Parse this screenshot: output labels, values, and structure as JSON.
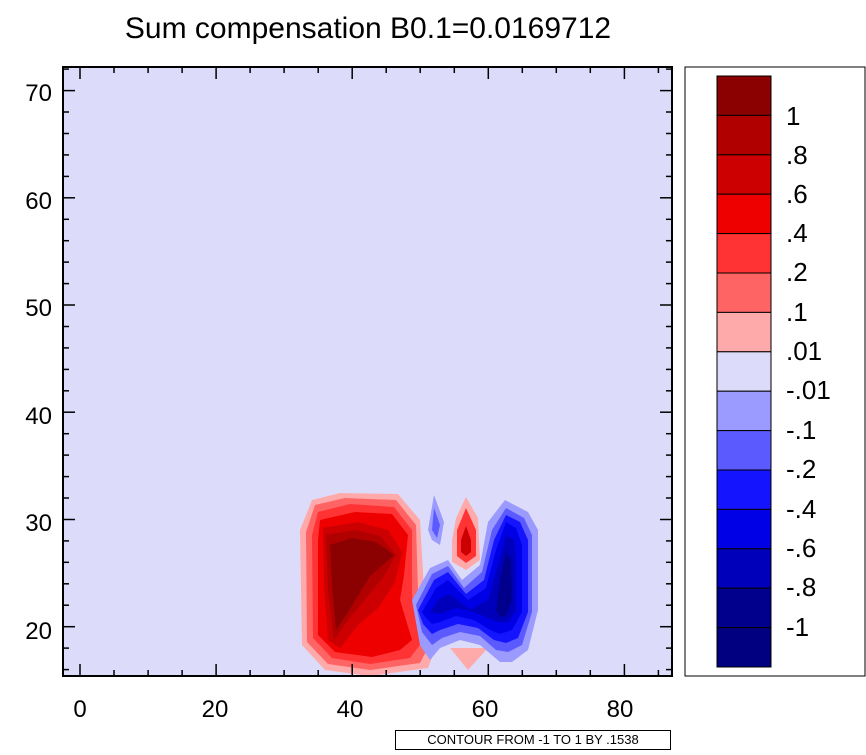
{
  "chart_data": {
    "type": "contour",
    "title": "Sum compensation B0.1=0.0169712",
    "xlabel": "",
    "ylabel": "",
    "xlim": [
      -2.5,
      87
    ],
    "ylim": [
      15.4,
      72.2
    ],
    "x_ticks": [
      "0",
      "20",
      "40",
      "60",
      "80"
    ],
    "y_ticks": [
      "20",
      "30",
      "40",
      "50",
      "60",
      "70"
    ],
    "grid": false,
    "background_level": "-.01 to .01",
    "legend": {
      "placement": "right",
      "levels": [
        "1",
        ".8",
        ".6",
        ".4",
        ".2",
        ".1",
        ".01",
        "-.01",
        "-.1",
        "-.2",
        "-.4",
        "-.6",
        "-.8",
        "-1"
      ],
      "colors": [
        "#8b0000",
        "#b00000",
        "#cc0000",
        "#ee0000",
        "#ff3333",
        "#ff6464",
        "#ffaaaa",
        "#dcdcfa",
        "#9a9aff",
        "#5a5aff",
        "#1414ff",
        "#0000e6",
        "#0000bb",
        "#00008c",
        "#000080"
      ]
    },
    "features": [
      {
        "name": "positive lobe",
        "x_range": [
          33,
          50
        ],
        "y_range": [
          16,
          32
        ],
        "peak": "> 1",
        "peak_at": [
          40,
          27
        ]
      },
      {
        "name": "small positive spot",
        "x_range": [
          54,
          60
        ],
        "y_range": [
          17,
          31
        ],
        "peak": ".6 to .8",
        "peak_at": [
          57,
          27
        ]
      },
      {
        "name": "negative lobe",
        "x_range": [
          51,
          68
        ],
        "y_range": [
          17,
          31
        ],
        "peak": "-.6 to -.8",
        "peak_at": [
          62,
          23
        ]
      }
    ],
    "annotation": "CONTOUR FROM -1 TO 1 BY .1538"
  }
}
